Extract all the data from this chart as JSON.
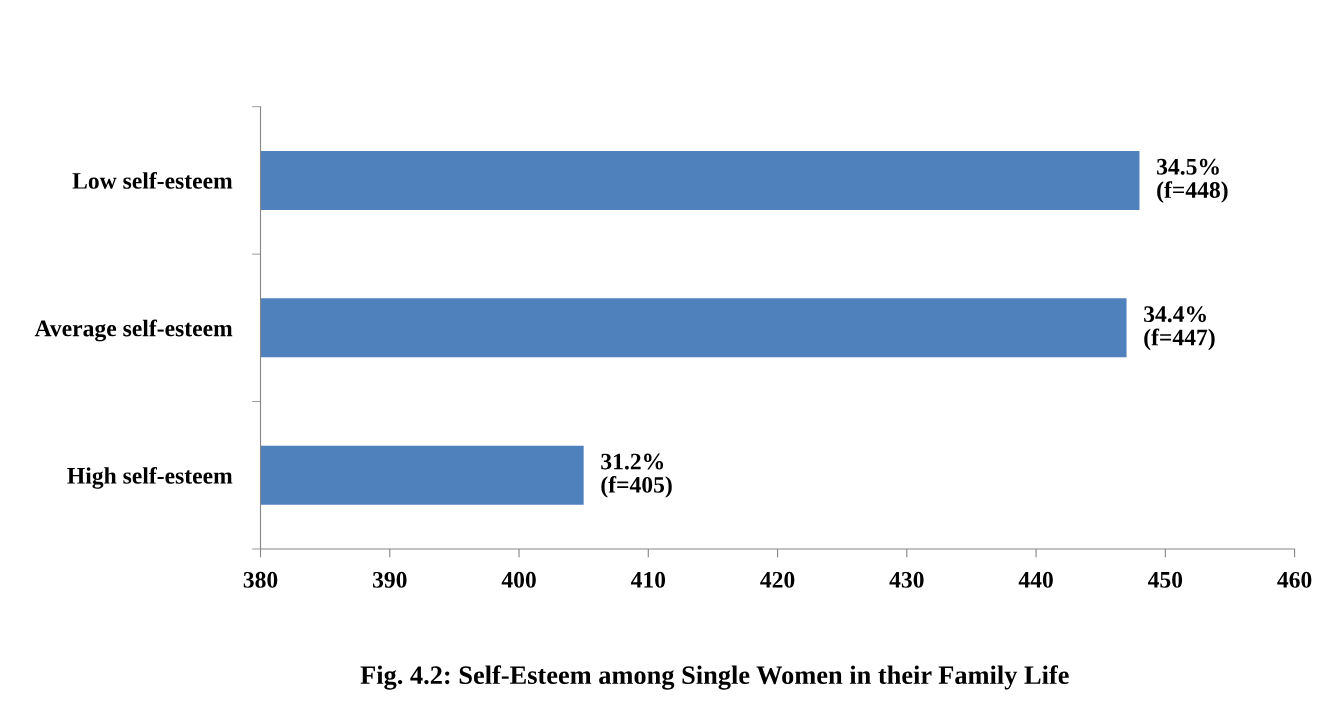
{
  "chart_data": {
    "type": "bar",
    "orientation": "horizontal",
    "title": "Fig. 4.2: Self-Esteem among Single Women in their Family Life",
    "categories": [
      "Low self-esteem",
      "Average self-esteem",
      "High self-esteem"
    ],
    "values": [
      448,
      447,
      405
    ],
    "value_labels": [
      "34.5%\n(f=448)",
      "34.4%\n(f=447)",
      "31.2%\n(f=405)"
    ],
    "color": "#4f81bd",
    "xlim": [
      380,
      460
    ],
    "xticks": [
      380,
      390,
      400,
      410,
      420,
      430,
      440,
      450,
      460
    ],
    "grid": false,
    "legend": false
  }
}
